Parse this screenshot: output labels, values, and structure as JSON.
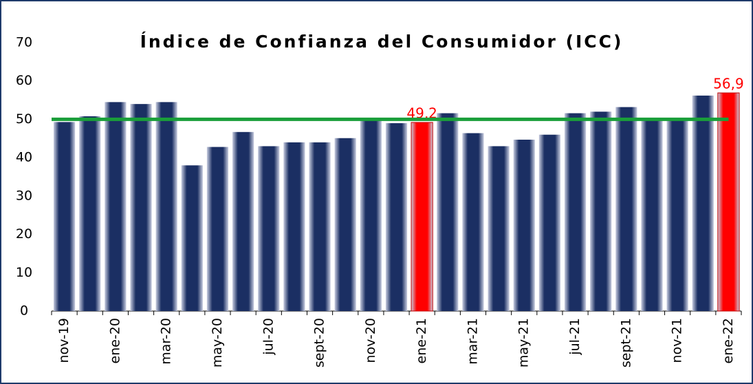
{
  "chart_data": {
    "type": "bar",
    "title": "Índice de Confianza del Consumidor (ICC)",
    "categories": [
      "nov-19",
      null,
      "ene-20",
      null,
      "mar-20",
      null,
      "may-20",
      null,
      "jul-20",
      null,
      "sept-20",
      null,
      "nov-20",
      null,
      "ene-21",
      null,
      "mar-21",
      null,
      "may-21",
      null,
      "jul-21",
      null,
      "sept-21",
      null,
      "nov-21",
      null,
      "ene-22"
    ],
    "values": [
      49.3,
      50.8,
      54.5,
      54.0,
      54.5,
      38.0,
      42.8,
      46.7,
      43.0,
      44.0,
      44.0,
      45.1,
      50.4,
      49.0,
      49.2,
      51.6,
      46.4,
      43.0,
      44.7,
      46.0,
      51.6,
      52.0,
      53.2,
      50.0,
      50.0,
      56.2,
      56.9
    ],
    "value_labels": [
      null,
      null,
      null,
      null,
      null,
      null,
      null,
      null,
      null,
      null,
      null,
      null,
      null,
      null,
      "49,2",
      null,
      null,
      null,
      null,
      null,
      null,
      null,
      null,
      null,
      null,
      null,
      "56,9"
    ],
    "colors": [
      "#1b2f63",
      "#1b2f63",
      "#1b2f63",
      "#1b2f63",
      "#1b2f63",
      "#1b2f63",
      "#1b2f63",
      "#1b2f63",
      "#1b2f63",
      "#1b2f63",
      "#1b2f63",
      "#1b2f63",
      "#1b2f63",
      "#1b2f63",
      "#ff0000",
      "#1b2f63",
      "#1b2f63",
      "#1b2f63",
      "#1b2f63",
      "#1b2f63",
      "#1b2f63",
      "#1b2f63",
      "#1b2f63",
      "#1b2f63",
      "#1b2f63",
      "#1b2f63",
      "#ff0000"
    ],
    "ylim": [
      0,
      70
    ],
    "yticks": [
      0,
      10,
      20,
      30,
      40,
      50,
      60,
      70
    ],
    "reference_line": {
      "value": 50,
      "color": "#1a9e3a"
    }
  }
}
